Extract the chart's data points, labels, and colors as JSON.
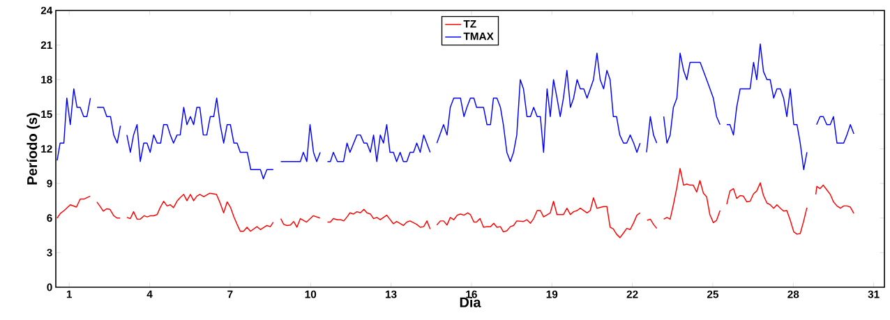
{
  "chart_data": {
    "type": "line",
    "xlabel": "Dia",
    "ylabel": "Período (s)",
    "xlim": [
      0.5,
      31.4
    ],
    "ylim": [
      0,
      24
    ],
    "xticks": [
      1,
      4,
      7,
      10,
      13,
      16,
      19,
      22,
      25,
      28,
      31
    ],
    "yticks": [
      0,
      3,
      6,
      9,
      12,
      15,
      18,
      21,
      24
    ],
    "legend": "top",
    "grid": false,
    "marker": "none",
    "line_style": "solid",
    "series": [
      {
        "name": "TZ",
        "color": "#ff0000",
        "x": [
          0.55,
          0.67,
          0.81,
          1.04,
          1.27,
          1.41,
          1.56,
          1.78,
          1.9,
          2.03,
          2.14,
          2.27,
          2.39,
          2.52,
          2.66,
          2.78,
          2.9,
          3.0,
          3.15,
          3.28,
          3.4,
          3.53,
          3.65,
          3.79,
          3.91,
          4.03,
          4.15,
          4.28,
          4.39,
          4.52,
          4.65,
          4.77,
          4.89,
          5.03,
          5.15,
          5.27,
          5.39,
          5.52,
          5.64,
          5.76,
          5.87,
          6.02,
          6.24,
          6.49,
          6.62,
          6.76,
          6.89,
          7.01,
          7.14,
          7.26,
          7.38,
          7.5,
          7.63,
          7.76,
          8.0,
          8.13,
          8.37,
          8.5,
          8.61,
          8.75,
          8.89,
          9.0,
          9.12,
          9.25,
          9.37,
          9.49,
          9.62,
          9.85,
          10.1,
          10.35,
          10.5,
          10.63,
          10.74,
          10.85,
          11.0,
          11.13,
          11.24,
          11.36,
          11.47,
          11.6,
          11.73,
          11.86,
          11.99,
          12.1,
          12.23,
          12.35,
          12.47,
          12.6,
          12.84,
          13.09,
          13.21,
          13.46,
          13.59,
          13.71,
          13.96,
          14.09,
          14.22,
          14.34,
          14.46,
          14.6,
          14.71,
          14.84,
          14.96,
          15.09,
          15.21,
          15.34,
          15.47,
          15.59,
          15.72,
          15.86,
          15.96,
          16.09,
          16.19,
          16.32,
          16.45,
          16.58,
          16.71,
          16.83,
          16.95,
          17.08,
          17.19,
          17.32,
          17.45,
          17.57,
          17.69,
          17.94,
          18.07,
          18.2,
          18.32,
          18.45,
          18.57,
          18.69,
          18.94,
          19.06,
          19.19,
          19.43,
          19.56,
          19.69,
          19.81,
          19.94,
          20.06,
          20.31,
          20.43,
          20.55,
          20.68,
          20.93,
          21.05,
          21.17,
          21.29,
          21.41,
          21.54,
          21.67,
          21.79,
          21.92,
          22.05,
          22.17,
          22.29,
          22.4,
          22.55,
          22.67,
          22.79,
          22.91,
          23.05,
          23.17,
          23.29,
          23.41,
          23.53,
          23.66,
          23.78,
          23.91,
          24.03,
          24.15,
          24.27,
          24.4,
          24.52,
          24.65,
          24.77,
          24.89,
          25.02,
          25.14,
          25.27,
          25.4,
          25.52,
          25.64,
          25.77,
          25.89,
          26.02,
          26.14,
          26.27,
          26.39,
          26.52,
          26.64,
          26.77,
          26.89,
          27.02,
          27.14,
          27.27,
          27.39,
          27.52,
          27.64,
          27.76,
          27.89,
          28.02,
          28.14,
          28.26,
          28.39,
          28.51,
          28.7,
          28.84,
          28.88,
          29.0,
          29.12,
          29.25,
          29.38,
          29.5,
          29.63,
          29.76,
          29.88,
          30.0,
          30.13,
          30.26
        ],
        "values": [
          6.0,
          6.4,
          6.65,
          7.15,
          6.95,
          7.65,
          7.65,
          7.9,
          null,
          7.4,
          7.05,
          6.6,
          6.8,
          6.75,
          6.2,
          6.0,
          6.0,
          null,
          6.05,
          5.95,
          6.55,
          5.9,
          5.9,
          6.2,
          6.1,
          6.2,
          6.2,
          6.3,
          6.9,
          7.45,
          7.05,
          7.15,
          6.9,
          7.5,
          7.8,
          8.05,
          7.5,
          8.05,
          7.5,
          7.9,
          8.05,
          7.85,
          8.15,
          8.05,
          7.35,
          6.45,
          7.4,
          6.95,
          6.1,
          5.45,
          4.85,
          4.85,
          5.2,
          4.85,
          5.25,
          5.0,
          5.35,
          5.25,
          5.65,
          null,
          5.95,
          5.45,
          5.35,
          5.4,
          5.7,
          5.2,
          5.95,
          5.65,
          6.2,
          6.0,
          null,
          5.65,
          5.65,
          5.95,
          5.85,
          5.85,
          5.75,
          6.1,
          6.45,
          6.35,
          6.55,
          6.45,
          6.75,
          6.45,
          6.35,
          5.95,
          6.05,
          5.85,
          6.25,
          5.5,
          5.7,
          5.35,
          5.65,
          5.75,
          5.45,
          5.2,
          5.25,
          5.75,
          5.05,
          null,
          5.4,
          5.75,
          5.75,
          5.4,
          6.05,
          5.85,
          6.25,
          6.35,
          6.25,
          6.45,
          6.3,
          5.65,
          5.65,
          5.95,
          5.2,
          5.25,
          5.25,
          5.55,
          5.2,
          5.25,
          4.8,
          4.9,
          5.25,
          5.35,
          5.75,
          5.7,
          5.85,
          5.55,
          5.95,
          6.65,
          6.65,
          6.1,
          6.45,
          7.45,
          6.3,
          6.3,
          6.85,
          6.3,
          6.55,
          6.65,
          6.85,
          6.45,
          6.65,
          7.75,
          6.85,
          7.0,
          7.0,
          5.2,
          5.05,
          4.6,
          4.3,
          4.7,
          5.1,
          5.0,
          5.6,
          6.25,
          6.45,
          null,
          5.8,
          5.9,
          5.45,
          5.1,
          null,
          5.9,
          6.05,
          5.9,
          7.15,
          8.65,
          10.3,
          8.85,
          8.95,
          8.85,
          8.85,
          8.25,
          9.25,
          8.15,
          7.85,
          6.3,
          5.6,
          5.8,
          6.65,
          null,
          7.2,
          8.35,
          8.55,
          7.7,
          7.95,
          7.9,
          7.4,
          7.45,
          8.1,
          8.35,
          9.05,
          7.95,
          7.3,
          7.15,
          6.85,
          7.15,
          6.85,
          6.6,
          6.65,
          5.8,
          4.8,
          4.6,
          4.65,
          5.75,
          6.9,
          null,
          8.05,
          8.75,
          8.55,
          8.85,
          8.45,
          8.05,
          7.4,
          7.05,
          6.85,
          7.05,
          7.05,
          6.95,
          6.4
        ]
      },
      {
        "name": "TMAX",
        "color": "#0000ff",
        "x": [
          0.55,
          0.66,
          0.8,
          0.91,
          1.04,
          1.17,
          1.29,
          1.41,
          1.54,
          1.66,
          1.79,
          1.9,
          2.04,
          2.28,
          2.4,
          2.54,
          2.66,
          2.79,
          2.91,
          3.0,
          3.15,
          3.28,
          3.4,
          3.53,
          3.65,
          3.78,
          3.9,
          4.02,
          4.15,
          4.28,
          4.41,
          4.52,
          4.65,
          4.77,
          4.89,
          5.02,
          5.14,
          5.27,
          5.39,
          5.52,
          5.64,
          5.76,
          5.87,
          6.0,
          6.13,
          6.26,
          6.39,
          6.5,
          6.63,
          6.76,
          6.89,
          7.01,
          7.14,
          7.26,
          7.38,
          7.64,
          7.77,
          8.13,
          8.24,
          8.37,
          8.61,
          8.75,
          8.89,
          9.62,
          9.73,
          9.86,
          9.98,
          10.11,
          10.23,
          10.36,
          10.5,
          10.63,
          10.74,
          10.85,
          11.0,
          11.23,
          11.36,
          11.47,
          11.73,
          11.86,
          11.99,
          12.1,
          12.23,
          12.35,
          12.47,
          12.6,
          12.72,
          12.84,
          12.96,
          13.09,
          13.21,
          13.34,
          13.46,
          13.59,
          13.71,
          13.84,
          13.96,
          14.09,
          14.22,
          14.46,
          14.6,
          14.71,
          14.96,
          15.09,
          15.21,
          15.34,
          15.59,
          15.72,
          15.83,
          15.96,
          16.09,
          16.19,
          16.45,
          16.58,
          16.71,
          16.82,
          16.95,
          17.08,
          17.19,
          17.32,
          17.45,
          17.57,
          17.69,
          17.82,
          17.94,
          18.07,
          18.2,
          18.32,
          18.45,
          18.57,
          18.69,
          18.82,
          18.94,
          19.06,
          19.19,
          19.31,
          19.43,
          19.56,
          19.69,
          19.81,
          19.94,
          20.06,
          20.19,
          20.31,
          20.55,
          20.68,
          20.8,
          20.93,
          21.05,
          21.17,
          21.29,
          21.41,
          21.53,
          21.67,
          21.79,
          21.92,
          22.05,
          22.17,
          22.29,
          22.4,
          22.53,
          22.67,
          22.79,
          22.91,
          23.05,
          23.17,
          23.29,
          23.41,
          23.53,
          23.66,
          23.78,
          23.91,
          24.03,
          24.15,
          24.53,
          24.77,
          25.02,
          25.14,
          25.27,
          25.4,
          25.52,
          25.64,
          25.77,
          25.89,
          26.02,
          26.39,
          26.52,
          26.64,
          26.77,
          26.89,
          27.02,
          27.14,
          27.27,
          27.39,
          27.52,
          27.64,
          27.76,
          27.89,
          28.02,
          28.14,
          28.26,
          28.39,
          28.51,
          28.7,
          28.87,
          29.0,
          29.12,
          29.25,
          29.38,
          29.5,
          29.63,
          29.88,
          30.0,
          30.13,
          30.26
        ],
        "values": [
          11.0,
          12.5,
          12.5,
          16.4,
          14.1,
          17.2,
          15.6,
          15.6,
          14.8,
          14.8,
          16.4,
          null,
          15.6,
          15.6,
          14.8,
          14.8,
          13.2,
          12.5,
          14.0,
          null,
          13.2,
          11.7,
          13.2,
          14.1,
          10.9,
          12.5,
          12.5,
          11.7,
          13.2,
          12.5,
          12.5,
          14.1,
          14.1,
          13.2,
          12.5,
          13.2,
          13.2,
          15.6,
          14.1,
          14.8,
          14.1,
          15.6,
          15.6,
          13.2,
          13.2,
          14.8,
          14.8,
          16.4,
          14.1,
          12.5,
          14.1,
          14.1,
          12.5,
          12.5,
          11.7,
          11.7,
          10.2,
          10.2,
          9.4,
          10.2,
          10.2,
          null,
          10.9,
          10.9,
          11.7,
          10.9,
          14.1,
          11.7,
          10.9,
          11.7,
          null,
          10.9,
          10.9,
          11.7,
          10.9,
          10.9,
          12.5,
          11.7,
          13.2,
          13.2,
          12.5,
          12.5,
          11.7,
          13.2,
          10.9,
          13.2,
          12.5,
          14.1,
          11.7,
          11.7,
          10.9,
          11.7,
          10.9,
          10.9,
          11.7,
          11.7,
          12.5,
          11.7,
          13.2,
          11.7,
          null,
          12.5,
          14.1,
          13.2,
          15.6,
          16.4,
          16.4,
          14.8,
          15.6,
          16.4,
          16.4,
          15.6,
          15.6,
          14.1,
          14.1,
          16.4,
          16.4,
          15.6,
          14.1,
          11.7,
          10.9,
          11.7,
          13.2,
          18.0,
          17.2,
          14.8,
          14.8,
          15.6,
          14.8,
          14.8,
          11.7,
          17.2,
          14.8,
          18.0,
          16.4,
          14.8,
          16.4,
          18.8,
          15.6,
          16.4,
          18.0,
          17.2,
          17.2,
          16.4,
          18.0,
          20.3,
          18.0,
          17.2,
          18.8,
          18.0,
          14.8,
          14.8,
          13.2,
          12.5,
          12.5,
          13.2,
          12.5,
          11.7,
          12.5,
          null,
          11.7,
          14.8,
          13.2,
          12.5,
          null,
          14.8,
          12.5,
          13.2,
          15.6,
          16.4,
          20.3,
          18.8,
          18.0,
          19.5,
          19.5,
          18.0,
          16.4,
          14.8,
          14.1,
          null,
          14.1,
          14.1,
          13.2,
          15.6,
          17.2,
          17.2,
          19.5,
          18.0,
          21.1,
          18.7,
          18.0,
          18.0,
          16.4,
          17.2,
          17.2,
          16.4,
          14.8,
          17.2,
          14.1,
          14.1,
          12.5,
          10.2,
          11.7,
          null,
          14.1,
          14.8,
          14.8,
          14.1,
          14.1,
          14.8,
          12.5,
          12.5,
          13.2,
          14.1,
          13.3
        ]
      }
    ]
  }
}
